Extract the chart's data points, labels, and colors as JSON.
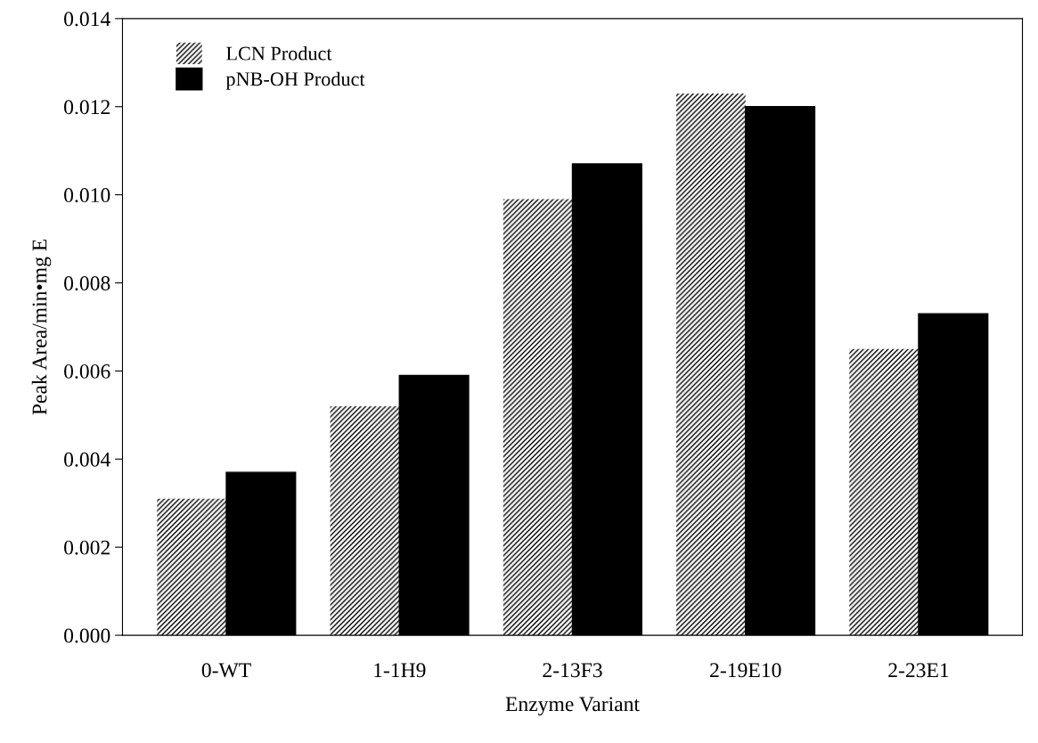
{
  "chart_data": {
    "type": "bar",
    "xlabel": "Enzyme Variant",
    "ylabel": "Peak Area/min•mg E",
    "categories": [
      "0-WT",
      "1-1H9",
      "2-13F3",
      "2-19E10",
      "2-23E1"
    ],
    "series": [
      {
        "name": "LCN Product",
        "color": "#ffffff",
        "values": [
          0.0031,
          0.0052,
          0.0099,
          0.0123,
          0.0065
        ]
      },
      {
        "name": "pNB-OH Product",
        "color": "#000000",
        "values": [
          0.0037,
          0.0059,
          0.0107,
          0.012,
          0.0073
        ]
      }
    ],
    "ylim": [
      0,
      0.014
    ],
    "yticks": [
      {
        "value": 0,
        "label": "0.000"
      },
      0.002,
      0.004,
      0.006,
      0.008,
      {
        "value": 0.01,
        "label": "0.010"
      },
      0.012,
      0.014
    ],
    "grid": false,
    "legend": "top left"
  }
}
